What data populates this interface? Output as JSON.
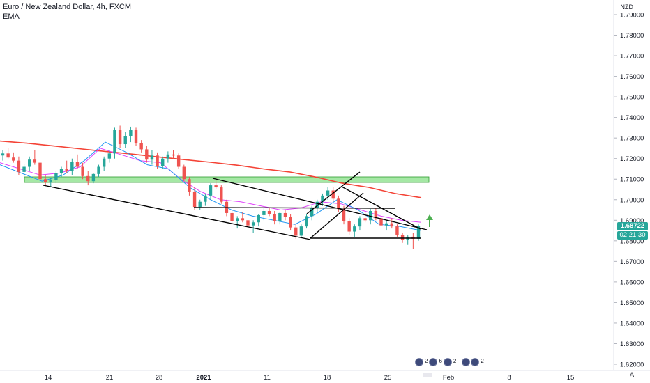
{
  "legend": {
    "symbol_line": "Euro / New Zealand Dollar, 4h, FXCM",
    "indicator": "EMA"
  },
  "price_scale": {
    "currency": "NZD",
    "current_price": "1.68722",
    "countdown": "02:21:30",
    "auto_label": "A",
    "current_price_color": "#26a69a",
    "countdown_color": "#26a69a"
  },
  "events": {
    "counts": [
      "2",
      "6",
      "2",
      "2"
    ]
  },
  "colors": {
    "up_candle": "#26a69a",
    "down_candle": "#ef5350",
    "ema_long": "#f44336",
    "ema_mid": "#e040fb",
    "ema_short": "#2196f3",
    "zone_fill": "#a5e8a5",
    "zone_border": "#2e9b2e",
    "trendline": "#000000",
    "arrow": "#4caf50"
  },
  "chart_data": {
    "type": "line",
    "title": "Euro / New Zealand Dollar, 4h, FXCM",
    "ylim": [
      1.6155,
      1.7945
    ],
    "y_ticks": [
      "1.79000",
      "1.78000",
      "1.77000",
      "1.76000",
      "1.75000",
      "1.74000",
      "1.73000",
      "1.72000",
      "1.71000",
      "1.70000",
      "1.69000",
      "1.68000",
      "1.67000",
      "1.66000",
      "1.65000",
      "1.64000",
      "1.63000",
      "1.62000"
    ],
    "x_ticks": [
      {
        "label": "14",
        "bold": false
      },
      {
        "label": "21",
        "bold": false
      },
      {
        "label": "28",
        "bold": false
      },
      {
        "label": "2021",
        "bold": true
      },
      {
        "label": "11",
        "bold": false
      },
      {
        "label": "18",
        "bold": false
      },
      {
        "label": "25",
        "bold": false
      },
      {
        "label": "Feb",
        "bold": false
      },
      {
        "label": "8",
        "bold": false
      },
      {
        "label": "15",
        "bold": false
      }
    ],
    "series": [
      {
        "values": [
          1.7285,
          1.7275,
          1.7262,
          1.7248,
          1.7235,
          1.7222,
          1.7208,
          1.7195,
          1.7182,
          1.7168,
          1.715,
          1.7135,
          1.711,
          1.708,
          1.706,
          1.703,
          1.701
        ]
      },
      {
        "values": [
          1.718,
          1.715,
          1.712,
          1.713,
          1.716,
          1.725,
          1.722,
          1.719,
          1.718,
          1.71,
          1.704,
          1.7,
          1.699,
          1.697,
          1.695,
          1.696,
          1.699,
          1.698,
          1.695,
          1.692,
          1.69,
          1.689
        ]
      },
      {
        "values": [
          1.717,
          1.713,
          1.709,
          1.712,
          1.719,
          1.728,
          1.723,
          1.717,
          1.715,
          1.706,
          1.7,
          1.695,
          1.692,
          1.69,
          1.688,
          1.693,
          1.7,
          1.695,
          1.688,
          1.687,
          1.685
        ]
      }
    ],
    "candles_ohlc": [
      [
        1.7215,
        1.724,
        1.719,
        1.7225
      ],
      [
        1.7225,
        1.725,
        1.72,
        1.7205
      ],
      [
        1.7205,
        1.723,
        1.718,
        1.719
      ],
      [
        1.719,
        1.721,
        1.712,
        1.7135
      ],
      [
        1.7135,
        1.7175,
        1.711,
        1.716
      ],
      [
        1.716,
        1.721,
        1.714,
        1.7195
      ],
      [
        1.7195,
        1.724,
        1.717,
        1.718
      ],
      [
        1.718,
        1.719,
        1.709,
        1.71
      ],
      [
        1.71,
        1.712,
        1.707,
        1.7085
      ],
      [
        1.7085,
        1.7105,
        1.706,
        1.7095
      ],
      [
        1.7095,
        1.714,
        1.708,
        1.713
      ],
      [
        1.713,
        1.716,
        1.711,
        1.715
      ],
      [
        1.715,
        1.719,
        1.713,
        1.714
      ],
      [
        1.714,
        1.72,
        1.712,
        1.7185
      ],
      [
        1.7185,
        1.722,
        1.715,
        1.716
      ],
      [
        1.716,
        1.718,
        1.71,
        1.7115
      ],
      [
        1.7115,
        1.714,
        1.707,
        1.709
      ],
      [
        1.709,
        1.713,
        1.708,
        1.7125
      ],
      [
        1.7125,
        1.717,
        1.711,
        1.716
      ],
      [
        1.716,
        1.721,
        1.714,
        1.72
      ],
      [
        1.72,
        1.724,
        1.718,
        1.7225
      ],
      [
        1.7225,
        1.735,
        1.72,
        1.734
      ],
      [
        1.734,
        1.736,
        1.725,
        1.727
      ],
      [
        1.727,
        1.733,
        1.725,
        1.731
      ],
      [
        1.731,
        1.7355,
        1.728,
        1.734
      ],
      [
        1.734,
        1.735,
        1.726,
        1.7275
      ],
      [
        1.7275,
        1.729,
        1.723,
        1.7245
      ],
      [
        1.7245,
        1.726,
        1.718,
        1.7195
      ],
      [
        1.7195,
        1.724,
        1.717,
        1.7215
      ],
      [
        1.7215,
        1.723,
        1.715,
        1.7165
      ],
      [
        1.7165,
        1.721,
        1.715,
        1.72
      ],
      [
        1.72,
        1.7235,
        1.718,
        1.722
      ],
      [
        1.722,
        1.724,
        1.72,
        1.7215
      ],
      [
        1.7215,
        1.7225,
        1.715,
        1.716
      ],
      [
        1.716,
        1.717,
        1.709,
        1.71
      ],
      [
        1.71,
        1.711,
        1.702,
        1.704
      ],
      [
        1.704,
        1.706,
        1.695,
        1.6965
      ],
      [
        1.6965,
        1.7,
        1.695,
        1.699
      ],
      [
        1.699,
        1.703,
        1.697,
        1.702
      ],
      [
        1.702,
        1.708,
        1.7,
        1.707
      ],
      [
        1.707,
        1.711,
        1.705,
        1.706
      ],
      [
        1.706,
        1.707,
        1.698,
        1.699
      ],
      [
        1.699,
        1.7,
        1.692,
        1.6935
      ],
      [
        1.6935,
        1.695,
        1.688,
        1.6895
      ],
      [
        1.6895,
        1.692,
        1.686,
        1.691
      ],
      [
        1.691,
        1.694,
        1.689,
        1.69
      ],
      [
        1.69,
        1.692,
        1.686,
        1.6875
      ],
      [
        1.6875,
        1.69,
        1.684,
        1.689
      ],
      [
        1.689,
        1.693,
        1.687,
        1.6925
      ],
      [
        1.6925,
        1.696,
        1.69,
        1.6945
      ],
      [
        1.6945,
        1.696,
        1.692,
        1.693
      ],
      [
        1.693,
        1.6945,
        1.688,
        1.6895
      ],
      [
        1.6895,
        1.694,
        1.688,
        1.6935
      ],
      [
        1.6935,
        1.695,
        1.69,
        1.6915
      ],
      [
        1.6915,
        1.693,
        1.685,
        1.6865
      ],
      [
        1.6865,
        1.688,
        1.681,
        1.6825
      ],
      [
        1.6825,
        1.688,
        1.6815,
        1.687
      ],
      [
        1.687,
        1.693,
        1.686,
        1.692
      ],
      [
        1.692,
        1.697,
        1.69,
        1.696
      ],
      [
        1.696,
        1.7,
        1.694,
        1.699
      ],
      [
        1.699,
        1.703,
        1.697,
        1.702
      ],
      [
        1.702,
        1.706,
        1.7,
        1.7045
      ],
      [
        1.7045,
        1.706,
        1.699,
        1.7005
      ],
      [
        1.7005,
        1.702,
        1.694,
        1.6955
      ],
      [
        1.6955,
        1.697,
        1.688,
        1.6895
      ],
      [
        1.6895,
        1.691,
        1.683,
        1.6845
      ],
      [
        1.6845,
        1.688,
        1.682,
        1.687
      ],
      [
        1.687,
        1.692,
        1.685,
        1.691
      ],
      [
        1.691,
        1.694,
        1.689,
        1.69
      ],
      [
        1.69,
        1.6955,
        1.688,
        1.6945
      ],
      [
        1.6945,
        1.696,
        1.69,
        1.691
      ],
      [
        1.691,
        1.692,
        1.686,
        1.6875
      ],
      [
        1.6875,
        1.69,
        1.685,
        1.6885
      ],
      [
        1.6885,
        1.691,
        1.686,
        1.687
      ],
      [
        1.687,
        1.688,
        1.682,
        1.683
      ],
      [
        1.683,
        1.684,
        1.679,
        1.6805
      ],
      [
        1.6805,
        1.683,
        1.678,
        1.682
      ],
      [
        1.682,
        1.684,
        1.676,
        1.681
      ],
      [
        1.681,
        1.688,
        1.68,
        1.6872
      ]
    ]
  }
}
